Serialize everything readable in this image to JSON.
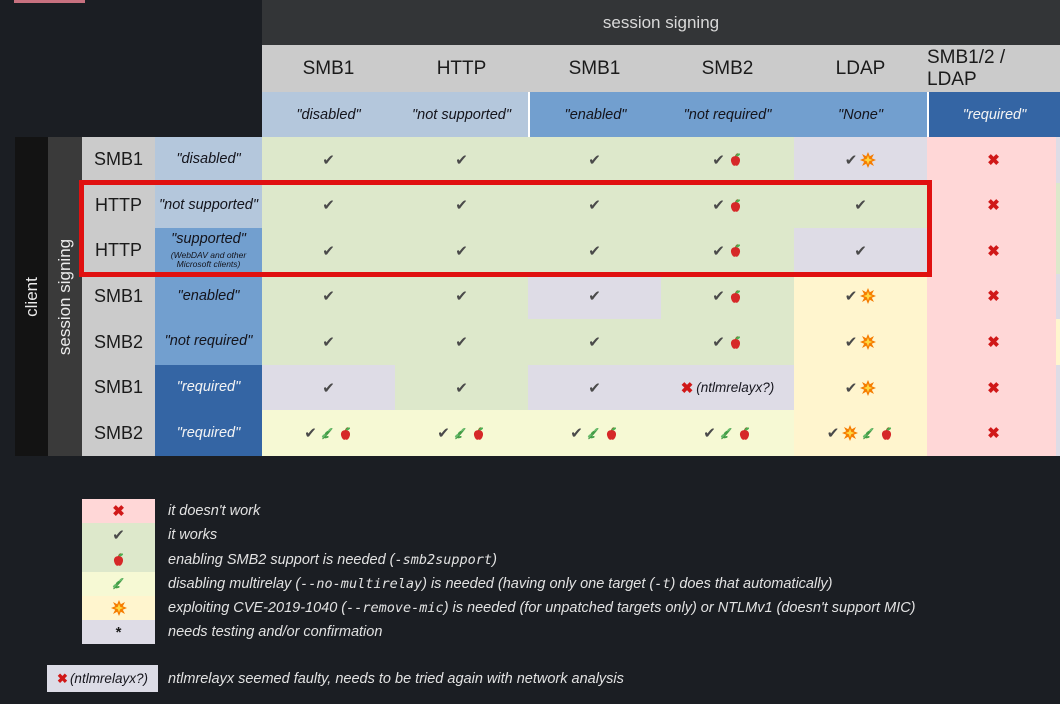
{
  "colors": {
    "light_blue": "#b4c7dc",
    "medium_blue": "#729fcf",
    "dark_blue": "#3465a4",
    "green": "#dde8cb",
    "lavender": "#dedce6",
    "gold": "#fff5ce",
    "lime": "#f6f9d4",
    "pink": "#ffd7d7",
    "header_gray": "#cbcbcb",
    "x_red": "#d01818",
    "check_gray": "#4a4a4a",
    "highlight_red": "#e01010",
    "accent_bar": "#c8717f"
  },
  "symbols": {
    "check": "✔",
    "x": "✖",
    "asterisk": "*"
  },
  "header": {
    "group_title": "session signing"
  },
  "axes": {
    "client": "client",
    "session_signing": "session signing"
  },
  "table": {
    "columns": [
      {
        "protocol": "SMB1",
        "signing": "\"disabled\"",
        "tone": "light"
      },
      {
        "protocol": "HTTP",
        "signing": "\"not supported\"",
        "tone": "light"
      },
      {
        "protocol": "SMB1",
        "signing": "\"enabled\"",
        "tone": "medium"
      },
      {
        "protocol": "SMB2",
        "signing": "\"not required\"",
        "tone": "medium"
      },
      {
        "protocol": "LDAP",
        "signing": "\"None\"",
        "tone": "medium"
      },
      {
        "protocol": "SMB1/2 / LDAP",
        "signing": "\"required\"",
        "tone": "dark"
      }
    ],
    "rows": [
      {
        "protocol": "SMB1",
        "signing": "\"disabled\"",
        "tone": "light",
        "cells": [
          {
            "bg": "green",
            "check": true
          },
          {
            "bg": "green",
            "check": true
          },
          {
            "bg": "green",
            "check": true
          },
          {
            "bg": "green",
            "check": true,
            "icons": [
              "apple"
            ]
          },
          {
            "bg": "lavender",
            "check": true,
            "icons": [
              "boom"
            ]
          },
          {
            "bg": "pink",
            "x": true
          }
        ]
      },
      {
        "protocol": "HTTP",
        "signing": "\"not supported\"",
        "tone": "light",
        "cells": [
          {
            "bg": "green",
            "check": true
          },
          {
            "bg": "green",
            "check": true
          },
          {
            "bg": "green",
            "check": true
          },
          {
            "bg": "green",
            "check": true,
            "icons": [
              "apple"
            ]
          },
          {
            "bg": "green",
            "check": true
          },
          {
            "bg": "pink",
            "x": true
          }
        ]
      },
      {
        "protocol": "HTTP",
        "signing": "\"supported\"",
        "signing_note": "(WebDAV and other Microsoft clients)",
        "tone": "medium",
        "cells": [
          {
            "bg": "green",
            "check": true
          },
          {
            "bg": "green",
            "check": true
          },
          {
            "bg": "green",
            "check": true
          },
          {
            "bg": "green",
            "check": true,
            "icons": [
              "apple"
            ]
          },
          {
            "bg": "lavender",
            "check": true
          },
          {
            "bg": "pink",
            "x": true
          }
        ]
      },
      {
        "protocol": "SMB1",
        "signing": "\"enabled\"",
        "tone": "medium",
        "cells": [
          {
            "bg": "green",
            "check": true
          },
          {
            "bg": "green",
            "check": true
          },
          {
            "bg": "lavender",
            "check": true
          },
          {
            "bg": "green",
            "check": true,
            "icons": [
              "apple"
            ]
          },
          {
            "bg": "gold",
            "check": true,
            "icons": [
              "boom"
            ]
          },
          {
            "bg": "pink",
            "x": true
          }
        ]
      },
      {
        "protocol": "SMB2",
        "signing": "\"not required\"",
        "tone": "medium",
        "cells": [
          {
            "bg": "green",
            "check": true
          },
          {
            "bg": "green",
            "check": true
          },
          {
            "bg": "green",
            "check": true
          },
          {
            "bg": "green",
            "check": true,
            "icons": [
              "apple"
            ]
          },
          {
            "bg": "gold",
            "check": true,
            "icons": [
              "boom"
            ]
          },
          {
            "bg": "pink",
            "x": true
          }
        ]
      },
      {
        "protocol": "SMB1",
        "signing": "\"required\"",
        "tone": "dark",
        "cells": [
          {
            "bg": "lavender",
            "check": true
          },
          {
            "bg": "green",
            "check": true
          },
          {
            "bg": "lavender",
            "check": true
          },
          {
            "bg": "lavender",
            "x": true,
            "note": "(ntlmrelayx?)"
          },
          {
            "bg": "gold",
            "check": true,
            "icons": [
              "boom"
            ]
          },
          {
            "bg": "pink",
            "x": true
          }
        ]
      },
      {
        "protocol": "SMB2",
        "signing": "\"required\"",
        "tone": "dark",
        "cells": [
          {
            "bg": "lime",
            "check": true,
            "icons": [
              "herb",
              "apple"
            ]
          },
          {
            "bg": "lime",
            "check": true,
            "icons": [
              "herb",
              "apple"
            ]
          },
          {
            "bg": "lime",
            "check": true,
            "icons": [
              "herb",
              "apple"
            ]
          },
          {
            "bg": "lime",
            "check": true,
            "icons": [
              "herb",
              "apple"
            ]
          },
          {
            "bg": "gold",
            "check": true,
            "icons": [
              "boom",
              "herb",
              "apple"
            ]
          },
          {
            "bg": "pink",
            "x": true
          }
        ]
      }
    ],
    "edge_strip": [
      "lavender",
      "green",
      "green",
      "lavender",
      "gold",
      "lavender",
      "lavender"
    ]
  },
  "legend": {
    "items": [
      {
        "bg": "pink",
        "symbol": "x",
        "segments": [
          {
            "t": "it doesn't work"
          }
        ]
      },
      {
        "bg": "green",
        "symbol": "check",
        "segments": [
          {
            "t": "it works"
          }
        ]
      },
      {
        "bg": "green",
        "symbol": "apple",
        "segments": [
          {
            "t": "enabling SMB2 support is needed ("
          },
          {
            "t": "-smb2support",
            "code": true
          },
          {
            "t": ")"
          }
        ]
      },
      {
        "bg": "lime",
        "symbol": "herb",
        "segments": [
          {
            "t": "disabling multirelay ("
          },
          {
            "t": "--no-multirelay",
            "code": true
          },
          {
            "t": ") is needed (having only one target ("
          },
          {
            "t": "-t",
            "code": true
          },
          {
            "t": ") does that automatically)"
          }
        ]
      },
      {
        "bg": "gold",
        "symbol": "boom",
        "segments": [
          {
            "t": "exploiting CVE-2019-1040 ("
          },
          {
            "t": "--remove-mic",
            "code": true
          },
          {
            "t": ") is needed (for unpatched targets only) or NTLMv1 (doesn't support MIC)"
          }
        ]
      },
      {
        "bg": "lavender",
        "symbol": "asterisk",
        "segments": [
          {
            "t": "needs testing and/or confirmation"
          }
        ]
      }
    ]
  },
  "footnote": {
    "box_label": "(ntlmrelayx?)",
    "text": "ntlmrelayx seemed faulty, needs to be tried again with network analysis"
  }
}
